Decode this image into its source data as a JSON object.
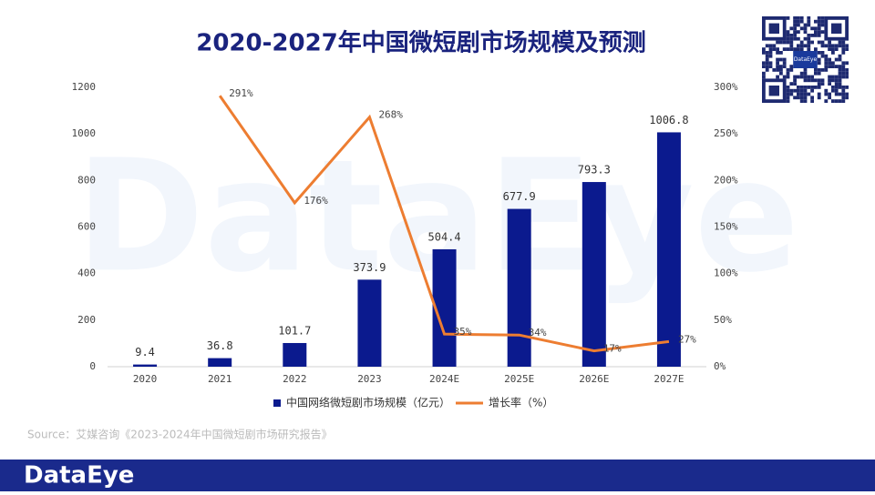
{
  "chart_data": {
    "type": "combo",
    "title": "2020-2027年中国微短剧市场规模及预测",
    "categories": [
      "2020",
      "2021",
      "2022",
      "2023",
      "2024E",
      "2025E",
      "2026E",
      "2027E"
    ],
    "series": [
      {
        "name": "中国网络微短剧市场规模（亿元）",
        "type": "bar",
        "color": "#0b1a8e",
        "values": [
          9.4,
          36.8,
          101.7,
          373.9,
          504.4,
          677.9,
          793.3,
          1006.8
        ]
      },
      {
        "name": "增长率（%）",
        "type": "line",
        "axis": "y2",
        "color": "#ed7d31",
        "values": [
          null,
          291,
          176,
          268,
          35,
          34,
          17,
          27
        ],
        "value_labels": [
          null,
          "291%",
          "176%",
          "268%",
          "35%",
          "34%",
          "17%",
          "27%"
        ]
      }
    ],
    "ylim": [
      0,
      1200
    ],
    "yticks": [
      0,
      200,
      400,
      600,
      800,
      1000,
      1200
    ],
    "y2lim": [
      0,
      300
    ],
    "y2ticks": [
      {
        "value": 0,
        "label": "0%"
      },
      {
        "value": 50,
        "label": "50%"
      },
      {
        "value": 100,
        "label": "100%"
      },
      {
        "value": 150,
        "label": "150%"
      },
      {
        "value": 200,
        "label": "200%"
      },
      {
        "value": 250,
        "label": "250%"
      },
      {
        "value": 300,
        "label": "300%"
      }
    ],
    "source": "Source：艾媒咨询《2023-2024年中国微短剧市场研究报告》",
    "watermark": "DataEye",
    "brand": "DataEye",
    "qr_label": "DataEye"
  }
}
